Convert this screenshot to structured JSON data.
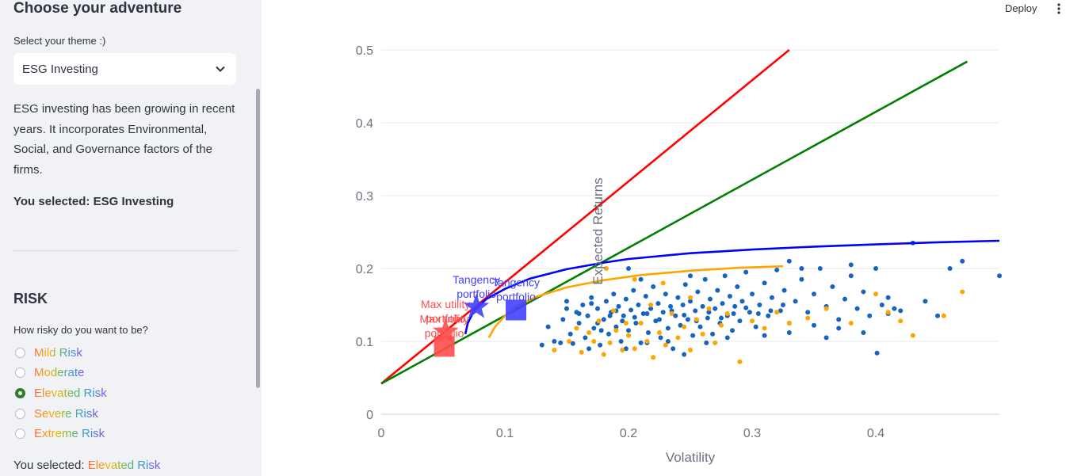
{
  "sidebar": {
    "title": "Choose your adventure",
    "theme_label": "Select your theme :)",
    "theme_value": "ESG Investing",
    "theme_icon": "chevron-down-icon",
    "description": "ESG investing has been growing in recent years. It incorporates Environmental, Social, and Governance factors of the firms.",
    "selected_theme_prefix": "You selected: ",
    "selected_theme_value": "ESG Investing",
    "risk_heading": "RISK",
    "risk_question": "How risky do you want to be?",
    "risk_options": [
      "Mild Risk",
      "Moderate",
      "Elevated Risk",
      "Severe Risk",
      "Extreme Risk"
    ],
    "risk_selected_index": 2,
    "selected_risk_prefix": "You selected: ",
    "selected_risk_value": "Elevated Risk"
  },
  "header": {
    "deploy_label": "Deploy",
    "menu_icon": "vertical-dots-icon"
  },
  "colors": {
    "accent_green": "#2e7d32",
    "cml_red": "#ff0000",
    "cml_green": "#008000",
    "frontier_blue": "#0000ff",
    "frontier_orange": "#ffa500",
    "assets_blue": "#1565c0",
    "assets_orange": "#ffa500"
  },
  "chart_data": {
    "type": "scatter",
    "xlabel": "Volatility",
    "ylabel": "Expected Returns",
    "xlim": [
      0,
      0.5
    ],
    "ylim": [
      0,
      0.5
    ],
    "x_ticks": [
      0,
      0.1,
      0.2,
      0.3,
      0.4
    ],
    "x_tick_labels": [
      "0",
      "0.1",
      "0.2",
      "0.3",
      "0.4"
    ],
    "y_ticks": [
      0,
      0.1,
      0.2,
      0.3,
      0.4,
      0.5
    ],
    "y_tick_labels": [
      "0",
      "0.1",
      "0.2",
      "0.3",
      "0.4",
      "0.5"
    ],
    "grid": true,
    "lines": [
      {
        "color": "#ff0000",
        "x": [
          0,
          0.33
        ],
        "y": [
          0.042,
          0.5
        ]
      },
      {
        "color": "#008000",
        "x": [
          0,
          0.474
        ],
        "y": [
          0.042,
          0.484
        ]
      },
      {
        "color": "#0000ff",
        "x": [
          0.068,
          0.07,
          0.075,
          0.085,
          0.1,
          0.12,
          0.15,
          0.18,
          0.2,
          0.25,
          0.3,
          0.35,
          0.4,
          0.45,
          0.5
        ],
        "y": [
          0.11,
          0.125,
          0.142,
          0.158,
          0.172,
          0.186,
          0.199,
          0.208,
          0.213,
          0.221,
          0.226,
          0.23,
          0.233,
          0.236,
          0.238
        ]
      },
      {
        "color": "#ffa500",
        "x": [
          0.087,
          0.092,
          0.1,
          0.11,
          0.125,
          0.15,
          0.18,
          0.21,
          0.25,
          0.29,
          0.325
        ],
        "y": [
          0.105,
          0.12,
          0.135,
          0.148,
          0.161,
          0.174,
          0.184,
          0.191,
          0.197,
          0.201,
          0.203
        ]
      }
    ],
    "markers": [
      {
        "shape": "star",
        "color": "#ff4d4d",
        "x": 0.052,
        "y": 0.113,
        "label": "Max utility portfolio"
      },
      {
        "shape": "square",
        "color": "#ff4d4d",
        "x": 0.051,
        "y": 0.093,
        "label": "Max utility portfolio"
      },
      {
        "shape": "star",
        "color": "#4040ff",
        "x": 0.077,
        "y": 0.147,
        "label": "Tangency portfolio"
      },
      {
        "shape": "square",
        "color": "#4040ff",
        "x": 0.109,
        "y": 0.143,
        "label": "Tangency portfolio"
      }
    ],
    "scatter_series": [
      {
        "color": "#1565c0",
        "points": [
          [
            0.13,
            0.095
          ],
          [
            0.135,
            0.12
          ],
          [
            0.145,
            0.098
          ],
          [
            0.147,
            0.13
          ],
          [
            0.15,
            0.155
          ],
          [
            0.153,
            0.11
          ],
          [
            0.155,
            0.097
          ],
          [
            0.158,
            0.14
          ],
          [
            0.16,
            0.125
          ],
          [
            0.163,
            0.15
          ],
          [
            0.165,
            0.105
          ],
          [
            0.167,
            0.135
          ],
          [
            0.17,
            0.16
          ],
          [
            0.172,
            0.118
          ],
          [
            0.175,
            0.145
          ],
          [
            0.177,
            0.095
          ],
          [
            0.18,
            0.13
          ],
          [
            0.182,
            0.155
          ],
          [
            0.184,
            0.11
          ],
          [
            0.186,
            0.14
          ],
          [
            0.188,
            0.165
          ],
          [
            0.19,
            0.12
          ],
          [
            0.192,
            0.148
          ],
          [
            0.194,
            0.1
          ],
          [
            0.196,
            0.135
          ],
          [
            0.198,
            0.158
          ],
          [
            0.2,
            0.115
          ],
          [
            0.202,
            0.143
          ],
          [
            0.204,
            0.17
          ],
          [
            0.206,
            0.125
          ],
          [
            0.208,
            0.15
          ],
          [
            0.21,
            0.098
          ],
          [
            0.212,
            0.138
          ],
          [
            0.214,
            0.162
          ],
          [
            0.216,
            0.112
          ],
          [
            0.218,
            0.145
          ],
          [
            0.22,
            0.175
          ],
          [
            0.222,
            0.128
          ],
          [
            0.224,
            0.152
          ],
          [
            0.226,
            0.105
          ],
          [
            0.228,
            0.14
          ],
          [
            0.23,
            0.165
          ],
          [
            0.232,
            0.118
          ],
          [
            0.234,
            0.148
          ],
          [
            0.236,
            0.09
          ],
          [
            0.238,
            0.135
          ],
          [
            0.24,
            0.16
          ],
          [
            0.242,
            0.122
          ],
          [
            0.244,
            0.15
          ],
          [
            0.246,
            0.178
          ],
          [
            0.248,
            0.13
          ],
          [
            0.25,
            0.155
          ],
          [
            0.252,
            0.108
          ],
          [
            0.254,
            0.142
          ],
          [
            0.256,
            0.168
          ],
          [
            0.258,
            0.12
          ],
          [
            0.26,
            0.148
          ],
          [
            0.262,
            0.185
          ],
          [
            0.264,
            0.132
          ],
          [
            0.266,
            0.158
          ],
          [
            0.268,
            0.11
          ],
          [
            0.27,
            0.145
          ],
          [
            0.272,
            0.17
          ],
          [
            0.274,
            0.125
          ],
          [
            0.276,
            0.152
          ],
          [
            0.278,
            0.19
          ],
          [
            0.28,
            0.135
          ],
          [
            0.282,
            0.162
          ],
          [
            0.284,
            0.115
          ],
          [
            0.286,
            0.148
          ],
          [
            0.288,
            0.175
          ],
          [
            0.29,
            0.128
          ],
          [
            0.292,
            0.155
          ],
          [
            0.295,
            0.195
          ],
          [
            0.298,
            0.14
          ],
          [
            0.3,
            0.165
          ],
          [
            0.303,
            0.12
          ],
          [
            0.306,
            0.15
          ],
          [
            0.31,
            0.18
          ],
          [
            0.313,
            0.135
          ],
          [
            0.316,
            0.16
          ],
          [
            0.32,
            0.198
          ],
          [
            0.323,
            0.142
          ],
          [
            0.326,
            0.17
          ],
          [
            0.33,
            0.125
          ],
          [
            0.335,
            0.155
          ],
          [
            0.34,
            0.185
          ],
          [
            0.345,
            0.14
          ],
          [
            0.35,
            0.165
          ],
          [
            0.355,
            0.2
          ],
          [
            0.36,
            0.148
          ],
          [
            0.365,
            0.175
          ],
          [
            0.37,
            0.13
          ],
          [
            0.375,
            0.158
          ],
          [
            0.38,
            0.19
          ],
          [
            0.385,
            0.145
          ],
          [
            0.39,
            0.168
          ],
          [
            0.395,
            0.135
          ],
          [
            0.4,
            0.2
          ],
          [
            0.405,
            0.15
          ],
          [
            0.41,
            0.138
          ],
          [
            0.415,
            0.145
          ],
          [
            0.42,
            0.142
          ],
          [
            0.43,
            0.235
          ],
          [
            0.45,
            0.135
          ],
          [
            0.46,
            0.2
          ],
          [
            0.47,
            0.21
          ],
          [
            0.5,
            0.19
          ],
          [
            0.401,
            0.084
          ],
          [
            0.2,
            0.2
          ],
          [
            0.21,
            0.185
          ],
          [
            0.25,
            0.19
          ],
          [
            0.15,
            0.145
          ],
          [
            0.16,
            0.138
          ],
          [
            0.17,
            0.152
          ],
          [
            0.175,
            0.125
          ],
          [
            0.185,
            0.135
          ],
          [
            0.19,
            0.142
          ],
          [
            0.195,
            0.128
          ],
          [
            0.205,
            0.133
          ],
          [
            0.215,
            0.138
          ],
          [
            0.225,
            0.13
          ],
          [
            0.235,
            0.142
          ],
          [
            0.245,
            0.136
          ],
          [
            0.255,
            0.128
          ],
          [
            0.265,
            0.14
          ],
          [
            0.275,
            0.132
          ],
          [
            0.285,
            0.138
          ],
          [
            0.295,
            0.146
          ],
          [
            0.305,
            0.138
          ],
          [
            0.315,
            0.142
          ],
          [
            0.325,
            0.15
          ],
          [
            0.14,
            0.1
          ],
          [
            0.168,
            0.09
          ],
          [
            0.178,
            0.115
          ],
          [
            0.198,
            0.09
          ],
          [
            0.215,
            0.098
          ],
          [
            0.232,
            0.1
          ],
          [
            0.245,
            0.082
          ],
          [
            0.263,
            0.098
          ],
          [
            0.28,
            0.105
          ],
          [
            0.31,
            0.108
          ],
          [
            0.33,
            0.112
          ],
          [
            0.35,
            0.122
          ],
          [
            0.37,
            0.118
          ],
          [
            0.39,
            0.112
          ],
          [
            0.36,
            0.105
          ],
          [
            0.34,
            0.2
          ],
          [
            0.33,
            0.21
          ],
          [
            0.38,
            0.205
          ],
          [
            0.41,
            0.16
          ],
          [
            0.44,
            0.155
          ]
        ]
      },
      {
        "color": "#ffa500",
        "points": [
          [
            0.14,
            0.088
          ],
          [
            0.152,
            0.1
          ],
          [
            0.158,
            0.118
          ],
          [
            0.162,
            0.085
          ],
          [
            0.168,
            0.112
          ],
          [
            0.172,
            0.1
          ],
          [
            0.176,
            0.128
          ],
          [
            0.18,
            0.082
          ],
          [
            0.185,
            0.098
          ],
          [
            0.19,
            0.115
          ],
          [
            0.195,
            0.088
          ],
          [
            0.2,
            0.108
          ],
          [
            0.205,
            0.09
          ],
          [
            0.21,
            0.125
          ],
          [
            0.215,
            0.1
          ],
          [
            0.22,
            0.078
          ],
          [
            0.225,
            0.112
          ],
          [
            0.23,
            0.095
          ],
          [
            0.235,
            0.138
          ],
          [
            0.24,
            0.105
          ],
          [
            0.245,
            0.12
          ],
          [
            0.25,
            0.088
          ],
          [
            0.255,
            0.13
          ],
          [
            0.26,
            0.11
          ],
          [
            0.265,
            0.145
          ],
          [
            0.27,
            0.098
          ],
          [
            0.275,
            0.122
          ],
          [
            0.28,
            0.138
          ],
          [
            0.29,
            0.072
          ],
          [
            0.3,
            0.128
          ],
          [
            0.31,
            0.118
          ],
          [
            0.32,
            0.14
          ],
          [
            0.33,
            0.125
          ],
          [
            0.345,
            0.132
          ],
          [
            0.36,
            0.145
          ],
          [
            0.38,
            0.125
          ],
          [
            0.4,
            0.165
          ],
          [
            0.41,
            0.14
          ],
          [
            0.42,
            0.128
          ],
          [
            0.43,
            0.108
          ],
          [
            0.455,
            0.135
          ],
          [
            0.47,
            0.168
          ],
          [
            0.182,
            0.2
          ],
          [
            0.205,
            0.185
          ],
          [
            0.228,
            0.18
          ],
          [
            0.25,
            0.16
          ],
          [
            0.188,
            0.142
          ],
          [
            0.198,
            0.125
          ],
          [
            0.218,
            0.15
          ]
        ]
      }
    ]
  }
}
